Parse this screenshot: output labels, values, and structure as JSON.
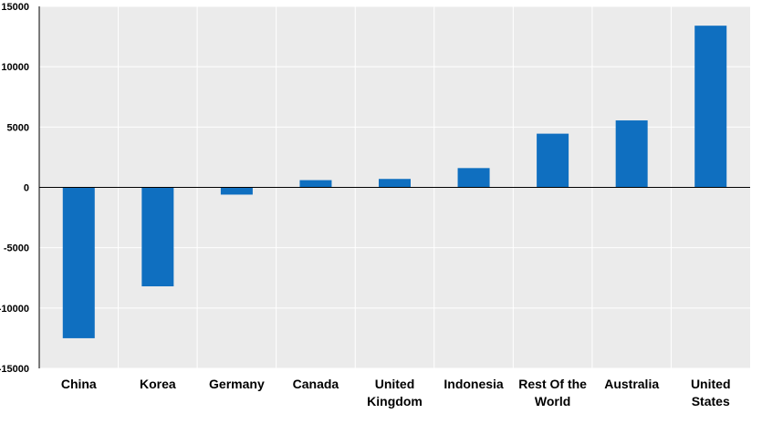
{
  "chart_data": {
    "type": "bar",
    "title": "",
    "xlabel": "",
    "ylabel": "",
    "categories": [
      [
        "China"
      ],
      [
        "Korea"
      ],
      [
        "Germany"
      ],
      [
        "Canada"
      ],
      [
        "United",
        "Kingdom"
      ],
      [
        "Indonesia"
      ],
      [
        "Rest Of the",
        "World"
      ],
      [
        "Australia"
      ],
      [
        "United",
        "States"
      ]
    ],
    "values": [
      -12500,
      -8200,
      -600,
      600,
      700,
      1600,
      4450,
      5550,
      13400
    ],
    "ylim": [
      -15000,
      15000
    ],
    "yticks": [
      "15000",
      "10000",
      "5000",
      "0",
      "-5000",
      "-10000",
      "-15000"
    ],
    "grid": true,
    "legend": "none",
    "colors": {
      "bar": "#0f6fc0",
      "plot_background": "#ebebeb",
      "grid": "#ffffff",
      "axis": "#000000"
    }
  }
}
